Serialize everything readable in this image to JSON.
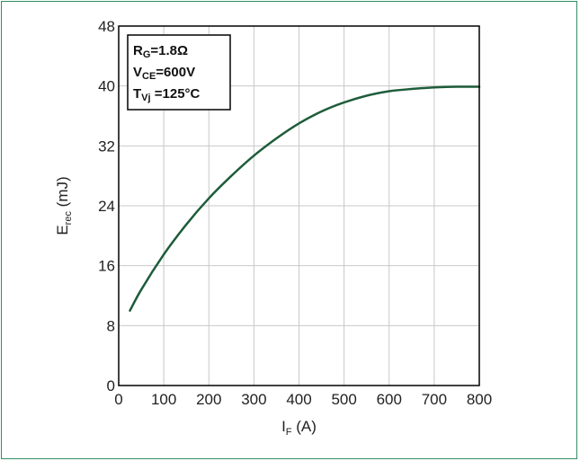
{
  "colors": {
    "frame": "#2f8f66",
    "curve": "#1e5c3a",
    "grid": "#c8c8c8",
    "axis": "#000000"
  },
  "chart_data": {
    "type": "line",
    "title": "",
    "xlabel": {
      "main": "I",
      "sub": "F",
      "rest": " (A)"
    },
    "ylabel": {
      "main": "E",
      "sub": "rec",
      "rest": " (mJ)"
    },
    "xlim": [
      0,
      800
    ],
    "ylim": [
      0,
      48
    ],
    "xticks": [
      0,
      100,
      200,
      300,
      400,
      500,
      600,
      700,
      800
    ],
    "yticks": [
      0,
      8,
      16,
      24,
      32,
      40,
      48
    ],
    "grid": true,
    "legend": {
      "placement": "top-left",
      "lines": [
        {
          "main": "R",
          "sub": "G",
          "rest": "=1.8Ω"
        },
        {
          "main": "V",
          "sub": "CE",
          "rest": "=600V"
        },
        {
          "main": "T",
          "sub": "Vj",
          "rest": " =125°C"
        }
      ]
    },
    "series": [
      {
        "x": [
          25,
          50,
          100,
          150,
          200,
          250,
          300,
          350,
          400,
          450,
          500,
          550,
          600,
          650,
          700,
          750,
          800
        ],
        "y": [
          10,
          12.8,
          17.5,
          21.5,
          25,
          28,
          30.7,
          33,
          35,
          36.6,
          37.8,
          38.7,
          39.3,
          39.6,
          39.8,
          39.9,
          39.9
        ]
      }
    ]
  }
}
